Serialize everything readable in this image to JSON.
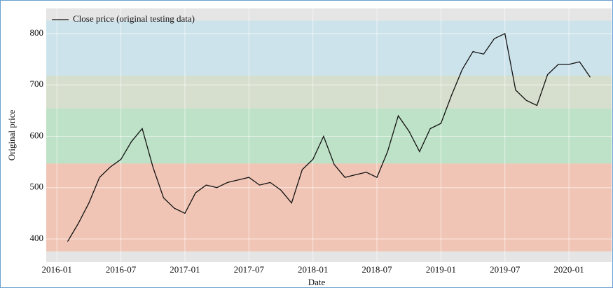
{
  "chart_data": {
    "type": "line",
    "xlabel": "Date",
    "ylabel": "Original price",
    "x": [
      "2016-02",
      "2016-03",
      "2016-04",
      "2016-05",
      "2016-06",
      "2016-07",
      "2016-08",
      "2016-09",
      "2016-10",
      "2016-11",
      "2016-12",
      "2017-01",
      "2017-02",
      "2017-03",
      "2017-04",
      "2017-05",
      "2017-06",
      "2017-07",
      "2017-08",
      "2017-09",
      "2017-10",
      "2017-11",
      "2017-12",
      "2018-01",
      "2018-02",
      "2018-03",
      "2018-04",
      "2018-05",
      "2018-06",
      "2018-07",
      "2018-08",
      "2018-09",
      "2018-10",
      "2018-11",
      "2018-12",
      "2019-01",
      "2019-02",
      "2019-03",
      "2019-04",
      "2019-05",
      "2019-06",
      "2019-07",
      "2019-08",
      "2019-09",
      "2019-10",
      "2019-11",
      "2019-12",
      "2020-01",
      "2020-02",
      "2020-03"
    ],
    "series": [
      {
        "name": "Close price (original testing data)",
        "color": "#111111",
        "values": [
          395,
          430,
          470,
          520,
          540,
          555,
          590,
          615,
          540,
          480,
          460,
          450,
          490,
          505,
          500,
          510,
          515,
          520,
          505,
          510,
          495,
          470,
          535,
          555,
          600,
          545,
          520,
          525,
          530,
          520,
          570,
          640,
          610,
          570,
          615,
          625,
          680,
          730,
          765,
          760,
          790,
          800,
          690,
          670,
          660,
          720,
          740,
          740,
          745,
          715
        ]
      }
    ],
    "bands": [
      {
        "range": [
          376,
          547
        ],
        "color": "#f4b9a4"
      },
      {
        "range": [
          547,
          654
        ],
        "color": "#b0e0bc"
      },
      {
        "range": [
          654,
          718
        ],
        "color": "#d0dcc4"
      },
      {
        "range": [
          718,
          825
        ],
        "color": "#c4e1ec"
      }
    ],
    "xlim": [
      "2015-12",
      "2020-05"
    ],
    "xticks": [
      "2016-01",
      "2016-07",
      "2017-01",
      "2017-07",
      "2018-01",
      "2018-07",
      "2019-01",
      "2019-07",
      "2020-01"
    ],
    "ylim": [
      355,
      849
    ],
    "yticks": [
      400,
      500,
      600,
      700,
      800
    ],
    "grid": true,
    "legend": "upper left"
  }
}
